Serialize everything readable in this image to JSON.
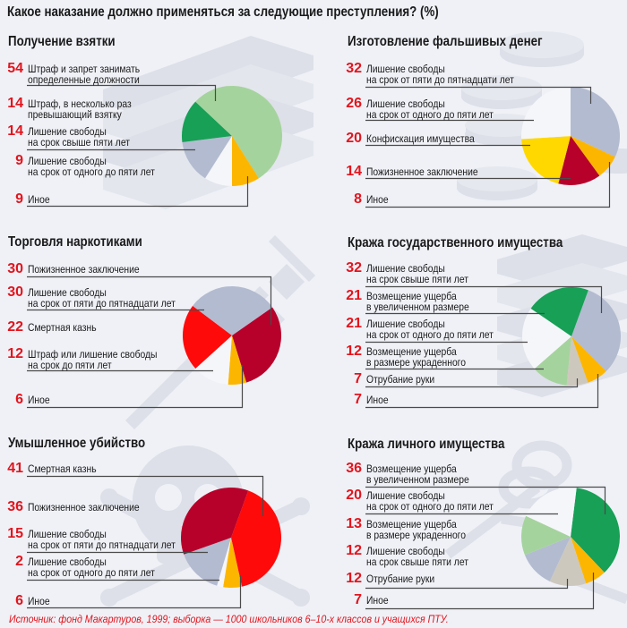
{
  "title": "Какое наказание должно применяться за следующие преступления? (%)",
  "footer": "Источник: фонд Макартуров, 1999; выборка — 1000 школьников 6–10-х классов и учащихся ПТУ.",
  "sections": [
    {
      "title": "Получение взятки",
      "items": [
        {
          "lines": [
            "Штраф и запрет занимать",
            "определенные должности"
          ]
        },
        {
          "lines": [
            "Штраф, в несколько раз",
            "превышающий взятку"
          ]
        },
        {
          "lines": [
            "Лишение свободы",
            "на срок свыше пяти лет"
          ]
        },
        {
          "lines": [
            "Лишение свободы",
            "на срок от одного до пяти лет"
          ]
        },
        {
          "lines": [
            "Иное"
          ]
        }
      ]
    },
    {
      "title": "Изготовление фальшивых денег",
      "items": [
        {
          "lines": [
            "Лишение свободы",
            "на срок от пяти до пятнадцати лет"
          ]
        },
        {
          "lines": [
            "Лишение свободы",
            "на срок от одного до пяти лет"
          ]
        },
        {
          "lines": [
            "Конфискация имущества"
          ]
        },
        {
          "lines": [
            "Пожизненное заключение"
          ]
        },
        {
          "lines": [
            "Иное"
          ]
        }
      ]
    },
    {
      "title": "Торговля наркотиками",
      "items": [
        {
          "lines": [
            "Пожизненное заключение"
          ]
        },
        {
          "lines": [
            "Лишение свободы",
            "на срок от пяти до пятнадцати лет"
          ]
        },
        {
          "lines": [
            "Смертная казнь"
          ]
        },
        {
          "lines": [
            "Штраф или лишение свободы",
            "на срок до пяти лет"
          ]
        },
        {
          "lines": [
            "Иное"
          ]
        }
      ]
    },
    {
      "title": "Кража государственного имущества",
      "items": [
        {
          "lines": [
            "Лишение свободы",
            "на срок свыше пяти лет"
          ]
        },
        {
          "lines": [
            "Возмещение ущерба",
            "в увеличенном размере"
          ]
        },
        {
          "lines": [
            "Лишение свободы",
            "на срок от одного до пяти лет"
          ]
        },
        {
          "lines": [
            "Возмещение ущерба",
            "в размере украденного"
          ]
        },
        {
          "lines": [
            "Отрубание руки"
          ]
        },
        {
          "lines": [
            "Иное"
          ]
        }
      ]
    },
    {
      "title": "Умышленное убийство",
      "items": [
        {
          "lines": [
            "Смертная казнь"
          ]
        },
        {
          "lines": [
            "Пожизненное заключение"
          ]
        },
        {
          "lines": [
            "Лишение свободы",
            "на срок от пяти до пятнадцати лет"
          ]
        },
        {
          "lines": [
            "Лишение свободы",
            "на срок от одного до пяти лет"
          ]
        },
        {
          "lines": [
            "Иное"
          ]
        }
      ]
    },
    {
      "title": "Кража личного имущества",
      "items": [
        {
          "lines": [
            "Возмещение ущерба",
            "в увеличенном размере"
          ]
        },
        {
          "lines": [
            "Лишение свободы",
            "на срок от одного до пяти лет"
          ]
        },
        {
          "lines": [
            "Возмещение ущерба",
            "в размере украденного"
          ]
        },
        {
          "lines": [
            "Лишение свободы",
            "на срок свыше пяти лет"
          ]
        },
        {
          "lines": [
            "Отрубание руки"
          ]
        },
        {
          "lines": [
            "Иное"
          ]
        }
      ]
    }
  ],
  "chart_data": [
    {
      "type": "pie",
      "title": "Получение взятки",
      "unit": "%",
      "categories": [
        "Штраф и запрет занимать определенные должности",
        "Штраф, в несколько раз превышающий взятку",
        "Лишение свободы на срок свыше пяти лет",
        "Лишение свободы на срок от одного до пяти лет",
        "Иное"
      ],
      "values": [
        54,
        14,
        14,
        9,
        9
      ],
      "colors": [
        "#a5d39d",
        "#17a056",
        "#b3bbd0",
        "#f5f6fa",
        "#fdb600"
      ]
    },
    {
      "type": "pie",
      "title": "Изготовление фальшивых денег",
      "unit": "%",
      "categories": [
        "Лишение свободы на срок от пяти до пятнадцати лет",
        "Лишение свободы на срок от одного до пяти лет",
        "Конфискация имущества",
        "Пожизненное заключение",
        "Иное"
      ],
      "values": [
        32,
        26,
        20,
        14,
        8
      ],
      "colors": [
        "#b3bbd0",
        "#f5f6fa",
        "#ffd800",
        "#b7002a",
        "#fdb600"
      ]
    },
    {
      "type": "pie",
      "title": "Торговля наркотиками",
      "unit": "%",
      "categories": [
        "Пожизненное заключение",
        "Лишение свободы на срок от пяти до пятнадцати лет",
        "Смертная казнь",
        "Штраф или лишение свободы на срок до пяти лет",
        "Иное"
      ],
      "values": [
        30,
        30,
        22,
        12,
        6
      ],
      "colors": [
        "#b7002a",
        "#b3bbd0",
        "#ff0a0a",
        "#f5f6fa",
        "#fdb600"
      ]
    },
    {
      "type": "pie",
      "title": "Кража государственного имущества",
      "unit": "%",
      "categories": [
        "Лишение свободы на срок свыше пяти лет",
        "Возмещение ущерба в увеличенном размере",
        "Лишение свободы на срок от одного до пяти лет",
        "Возмещение ущерба в размере украденного",
        "Отрубание руки",
        "Иное"
      ],
      "values": [
        32,
        21,
        21,
        12,
        7,
        7
      ],
      "colors": [
        "#b3bbd0",
        "#17a056",
        "#f5f6fa",
        "#a5d39d",
        "#cdc8be",
        "#fdb600"
      ]
    },
    {
      "type": "pie",
      "title": "Умышленное убийство",
      "unit": "%",
      "categories": [
        "Смертная казнь",
        "Пожизненное заключение",
        "Лишение свободы на срок от пяти до пятнадцати лет",
        "Лишение свободы на срок от одного до пяти лет",
        "Иное"
      ],
      "values": [
        41,
        36,
        15,
        2,
        6
      ],
      "colors": [
        "#ff0a0a",
        "#b7002a",
        "#b3bbd0",
        "#f5f6fa",
        "#fdb600"
      ]
    },
    {
      "type": "pie",
      "title": "Кража личного имущества",
      "unit": "%",
      "categories": [
        "Возмещение ущерба в увеличенном размере",
        "Лишение свободы на срок от одного до пяти лет",
        "Возмещение ущерба в размере украденного",
        "Лишение свободы на срок свыше пяти лет",
        "Отрубание руки",
        "Иное"
      ],
      "values": [
        36,
        20,
        13,
        12,
        12,
        7
      ],
      "colors": [
        "#17a056",
        "#f5f6fa",
        "#a5d39d",
        "#b3bbd0",
        "#cdc8be",
        "#fdb600"
      ]
    }
  ]
}
